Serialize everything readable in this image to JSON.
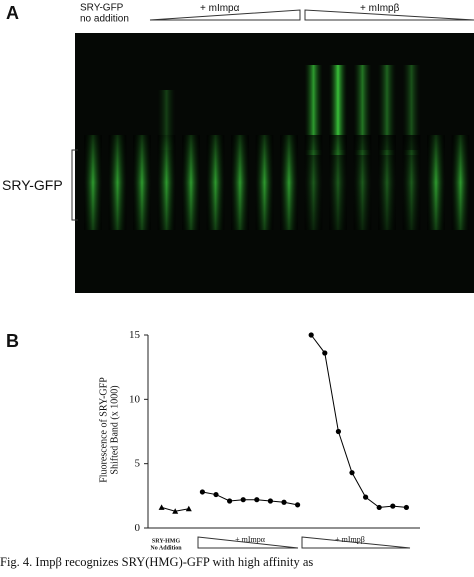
{
  "panel_a": {
    "label": "A",
    "lane_header_left": "SRY-GFP\nno addition",
    "group_alpha": "+ mImpα",
    "group_beta": "+ mImpβ",
    "band_label": "SRY-GFP"
  },
  "chart_data": {
    "type": "line",
    "label": "B",
    "y_label": "Fluorescence of SRY-GFP\nShifted Band (x 1000)",
    "x": [
      1,
      2,
      3,
      4,
      5,
      6,
      7,
      8,
      9,
      10,
      11,
      12,
      13,
      14,
      15,
      16,
      17,
      18,
      19
    ],
    "xlim": [
      0,
      20
    ],
    "ylim": [
      0,
      15
    ],
    "yticks": [
      0,
      5,
      10,
      15
    ],
    "series": [
      {
        "name": "SRY-HMG\nNo Addition",
        "color": "#000000",
        "marker": "triangle",
        "values": [
          1.6,
          1.3,
          1.5,
          null,
          null,
          null,
          null,
          null,
          null,
          null,
          null,
          null,
          null,
          null,
          null,
          null,
          null,
          null,
          null
        ]
      },
      {
        "name": "+ mImpα",
        "color": "#000000",
        "marker": "circle",
        "values": [
          null,
          null,
          null,
          2.8,
          2.6,
          2.1,
          2.2,
          2.2,
          2.1,
          2.0,
          1.8,
          null,
          null,
          null,
          null,
          null,
          null,
          null,
          null
        ]
      },
      {
        "name": "+ mImpβ",
        "color": "#000000",
        "marker": "circle",
        "values": [
          null,
          null,
          null,
          null,
          null,
          null,
          null,
          null,
          null,
          null,
          null,
          15,
          13.6,
          7.5,
          4.3,
          2.4,
          1.6,
          1.7,
          1.6
        ]
      }
    ]
  },
  "caption": "Fig. 4. Impβ recognizes SRY(HMG)-GFP with high affinity as"
}
